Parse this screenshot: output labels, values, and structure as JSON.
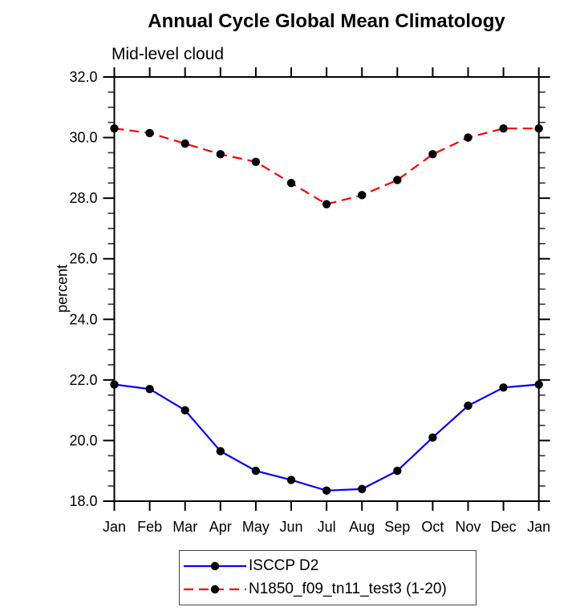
{
  "chart_data": {
    "type": "line",
    "title": "Annual Cycle Global Mean Climatology",
    "subtitle": "Mid-level cloud",
    "ylabel": "percent",
    "xlabel": "",
    "categories": [
      "Jan",
      "Feb",
      "Mar",
      "Apr",
      "May",
      "Jun",
      "Jul",
      "Aug",
      "Sep",
      "Oct",
      "Nov",
      "Dec",
      "Jan"
    ],
    "ylim": [
      18.0,
      32.0
    ],
    "yticks": {
      "values": [
        18,
        20,
        22,
        24,
        26,
        28,
        30,
        32
      ],
      "labels": [
        "18.0",
        "20.0",
        "22.0",
        "24.0",
        "26.0",
        "28.0",
        "30.0",
        "32.0"
      ]
    },
    "ytick_minor_step": 0.5,
    "grid": false,
    "legend_position": "bottom-center",
    "axis_color": "#000000",
    "series": [
      {
        "name": "ISCCP D2",
        "color": "#0000ff",
        "line_style": "solid",
        "marker": "filled-circle",
        "marker_color": "#000000",
        "values": [
          21.85,
          21.7,
          21.0,
          19.65,
          19.0,
          18.7,
          18.35,
          18.4,
          19.0,
          20.1,
          21.15,
          21.75,
          21.85
        ]
      },
      {
        "name": "N1850_f09_tn11_test3 (1-20)",
        "color": "#ff0000",
        "line_style": "dashed",
        "marker": "filled-circle",
        "marker_color": "#000000",
        "values": [
          30.3,
          30.15,
          29.8,
          29.45,
          29.2,
          28.5,
          27.8,
          28.1,
          28.6,
          29.45,
          30.0,
          30.3,
          30.3
        ]
      }
    ]
  }
}
